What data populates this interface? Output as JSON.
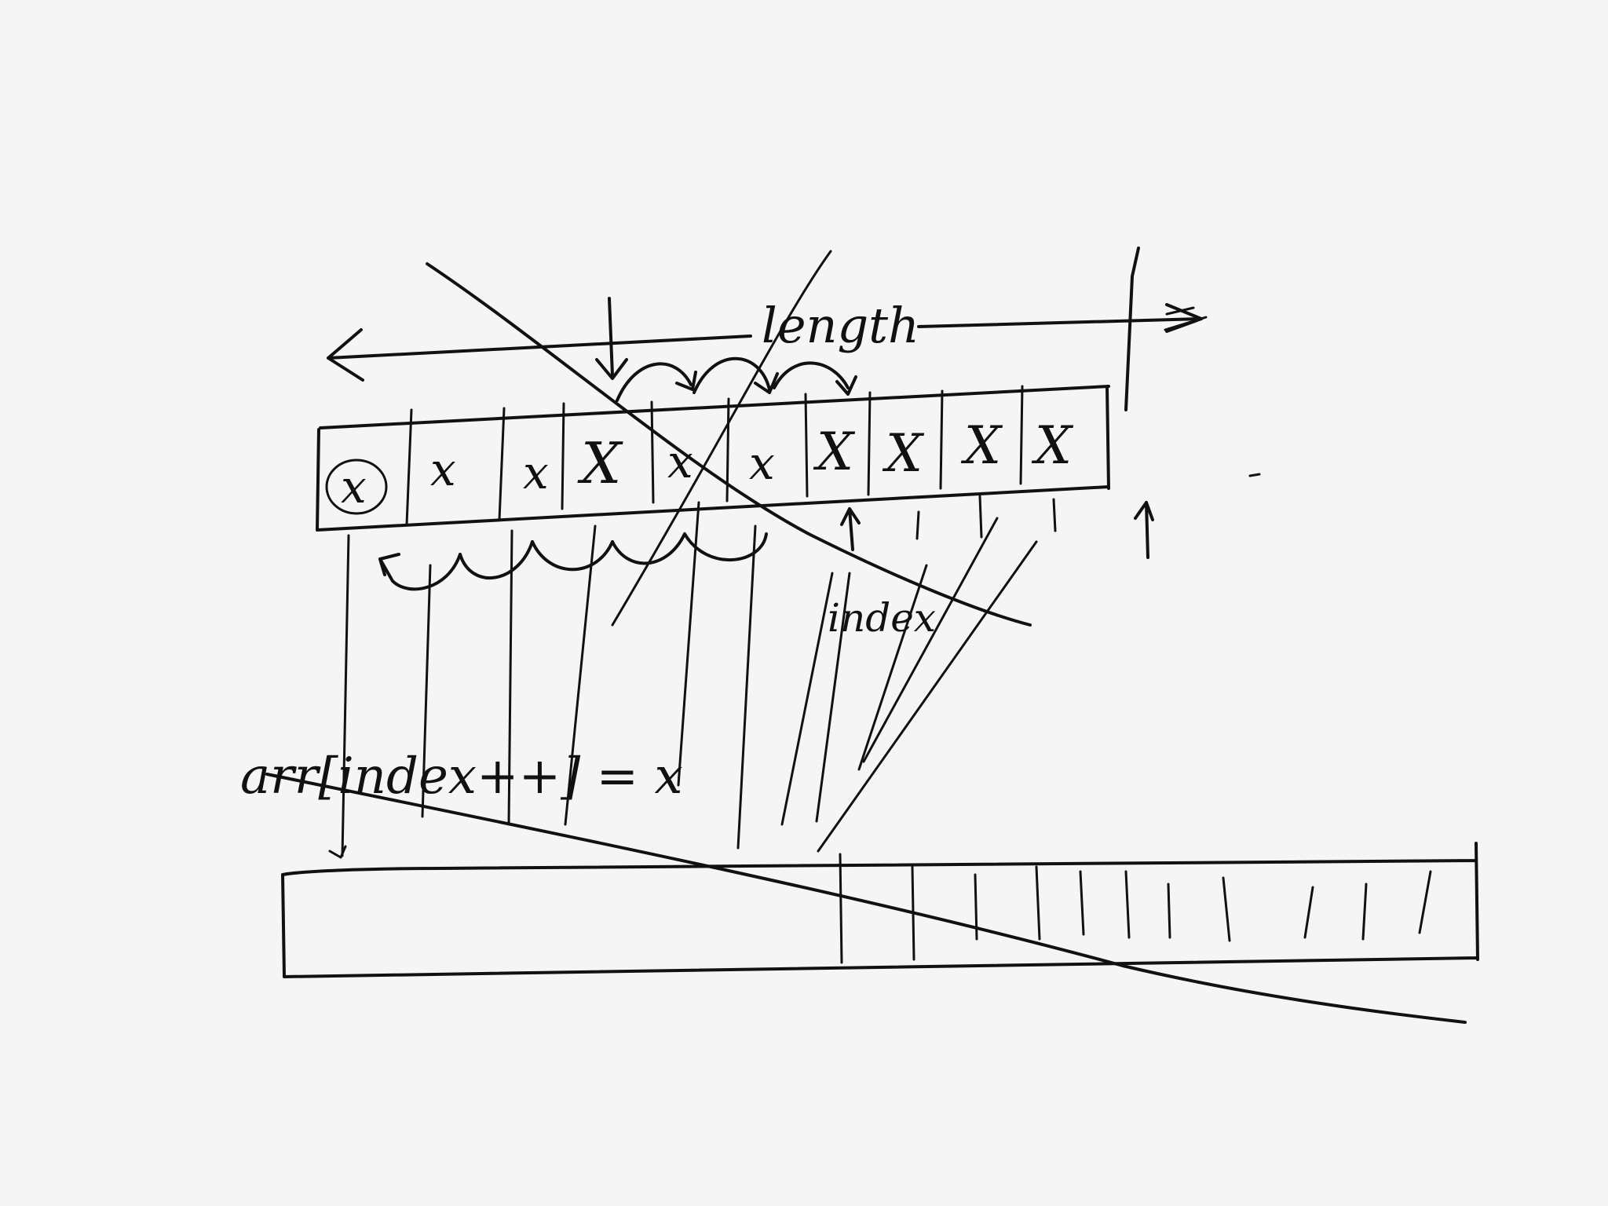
{
  "sketch": {
    "label_length": "length",
    "label_index": "index",
    "code_statement": "arr[index++] = x",
    "cell_mark": "X",
    "cell_mark_lower": "x",
    "ink_color": "#111111",
    "paper_color": "#f5f5f5"
  }
}
